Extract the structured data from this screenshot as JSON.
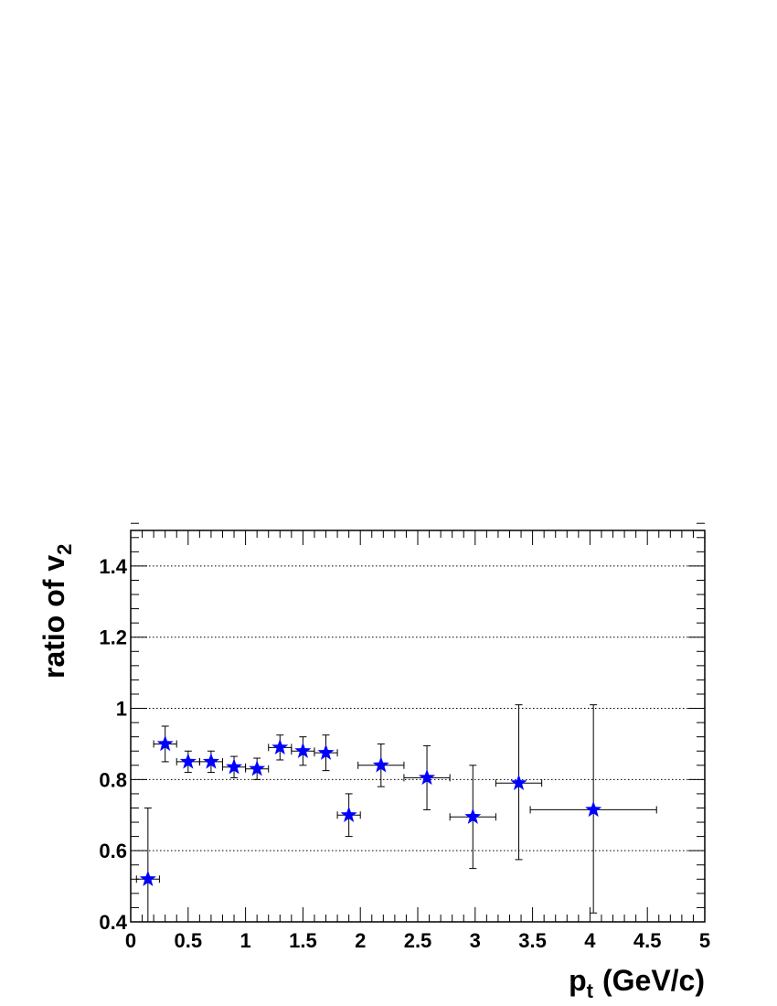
{
  "chart_data": {
    "type": "scatter",
    "title": "",
    "xlabel": "p",
    "xlabel_sub": "t",
    "xlabel_unit": "(GeV/c)",
    "ylabel": "ratio of v",
    "ylabel_sub": "2",
    "xlim": [
      0,
      5
    ],
    "ylim": [
      0.4,
      1.5
    ],
    "x_ticks": [
      "0",
      "0.5",
      "1",
      "1.5",
      "2",
      "2.5",
      "3",
      "3.5",
      "4",
      "4.5",
      "5"
    ],
    "y_ticks": [
      "0.4",
      "0.6",
      "0.8",
      "1",
      "1.2",
      "1.4"
    ],
    "grid": "horizontal dotted",
    "marker": "star",
    "marker_color": "#0000ff",
    "points": [
      {
        "x": 0.15,
        "y": 0.52,
        "xerr": 0.1,
        "yerr_low": 0.12,
        "yerr_high": 0.2
      },
      {
        "x": 0.3,
        "y": 0.9,
        "xerr": 0.1,
        "yerr_low": 0.05,
        "yerr_high": 0.05
      },
      {
        "x": 0.5,
        "y": 0.85,
        "xerr": 0.1,
        "yerr_low": 0.03,
        "yerr_high": 0.03
      },
      {
        "x": 0.7,
        "y": 0.85,
        "xerr": 0.1,
        "yerr_low": 0.03,
        "yerr_high": 0.03
      },
      {
        "x": 0.9,
        "y": 0.835,
        "xerr": 0.1,
        "yerr_low": 0.03,
        "yerr_high": 0.03
      },
      {
        "x": 1.1,
        "y": 0.83,
        "xerr": 0.1,
        "yerr_low": 0.03,
        "yerr_high": 0.03
      },
      {
        "x": 1.3,
        "y": 0.89,
        "xerr": 0.1,
        "yerr_low": 0.035,
        "yerr_high": 0.035
      },
      {
        "x": 1.5,
        "y": 0.88,
        "xerr": 0.1,
        "yerr_low": 0.04,
        "yerr_high": 0.04
      },
      {
        "x": 1.7,
        "y": 0.875,
        "xerr": 0.1,
        "yerr_low": 0.05,
        "yerr_high": 0.05
      },
      {
        "x": 1.9,
        "y": 0.7,
        "xerr": 0.1,
        "yerr_low": 0.06,
        "yerr_high": 0.06
      },
      {
        "x": 2.18,
        "y": 0.84,
        "xerr": 0.2,
        "yerr_low": 0.06,
        "yerr_high": 0.06
      },
      {
        "x": 2.58,
        "y": 0.805,
        "xerr": 0.2,
        "yerr_low": 0.09,
        "yerr_high": 0.09
      },
      {
        "x": 2.98,
        "y": 0.695,
        "xerr": 0.2,
        "yerr_low": 0.145,
        "yerr_high": 0.145
      },
      {
        "x": 3.38,
        "y": 0.79,
        "xerr": 0.2,
        "yerr_low": 0.215,
        "yerr_high": 0.22
      },
      {
        "x": 4.03,
        "y": 0.715,
        "xerr": 0.55,
        "yerr_low": 0.29,
        "yerr_high": 0.295
      }
    ]
  }
}
